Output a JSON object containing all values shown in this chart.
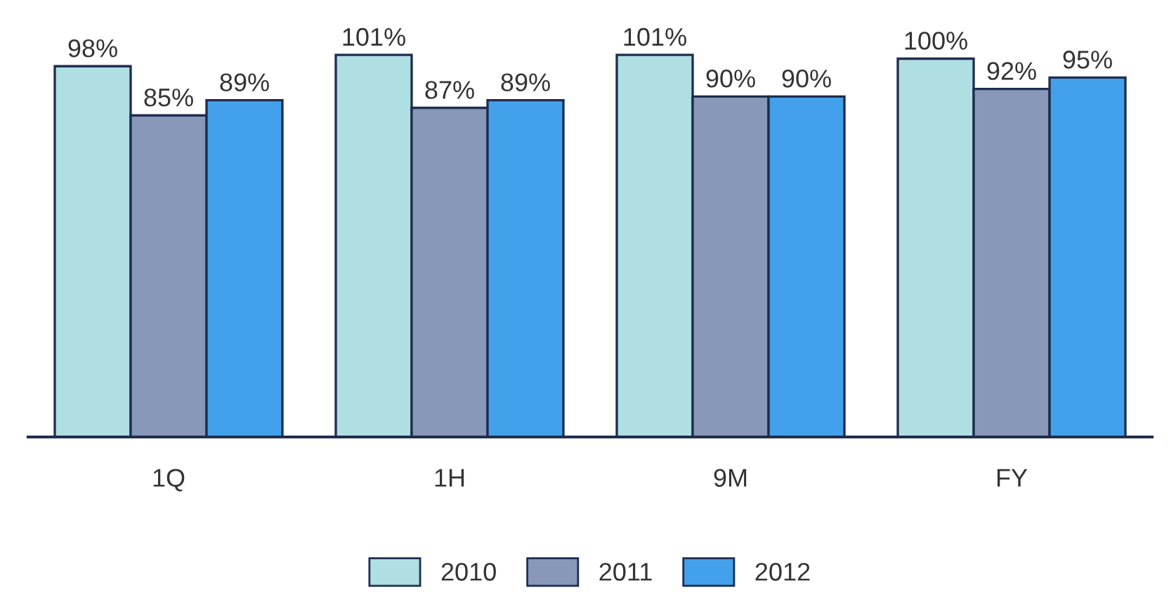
{
  "chart_data": {
    "type": "bar",
    "categories": [
      "1Q",
      "1H",
      "9M",
      "FY"
    ],
    "series": [
      {
        "name": "2010",
        "color": "#b0dfe3",
        "values": [
          98,
          101,
          101,
          100
        ],
        "value_labels": [
          "98%",
          "101%",
          "101%",
          "100%"
        ]
      },
      {
        "name": "2011",
        "color": "#8898b8",
        "values": [
          85,
          87,
          90,
          92
        ],
        "value_labels": [
          "85%",
          "87%",
          "90%",
          "92%"
        ]
      },
      {
        "name": "2012",
        "color": "#43a0ea",
        "values": [
          89,
          89,
          90,
          95
        ],
        "value_labels": [
          "89%",
          "89%",
          "90%",
          "95%"
        ]
      }
    ],
    "grid": false,
    "legend": "bottom"
  }
}
